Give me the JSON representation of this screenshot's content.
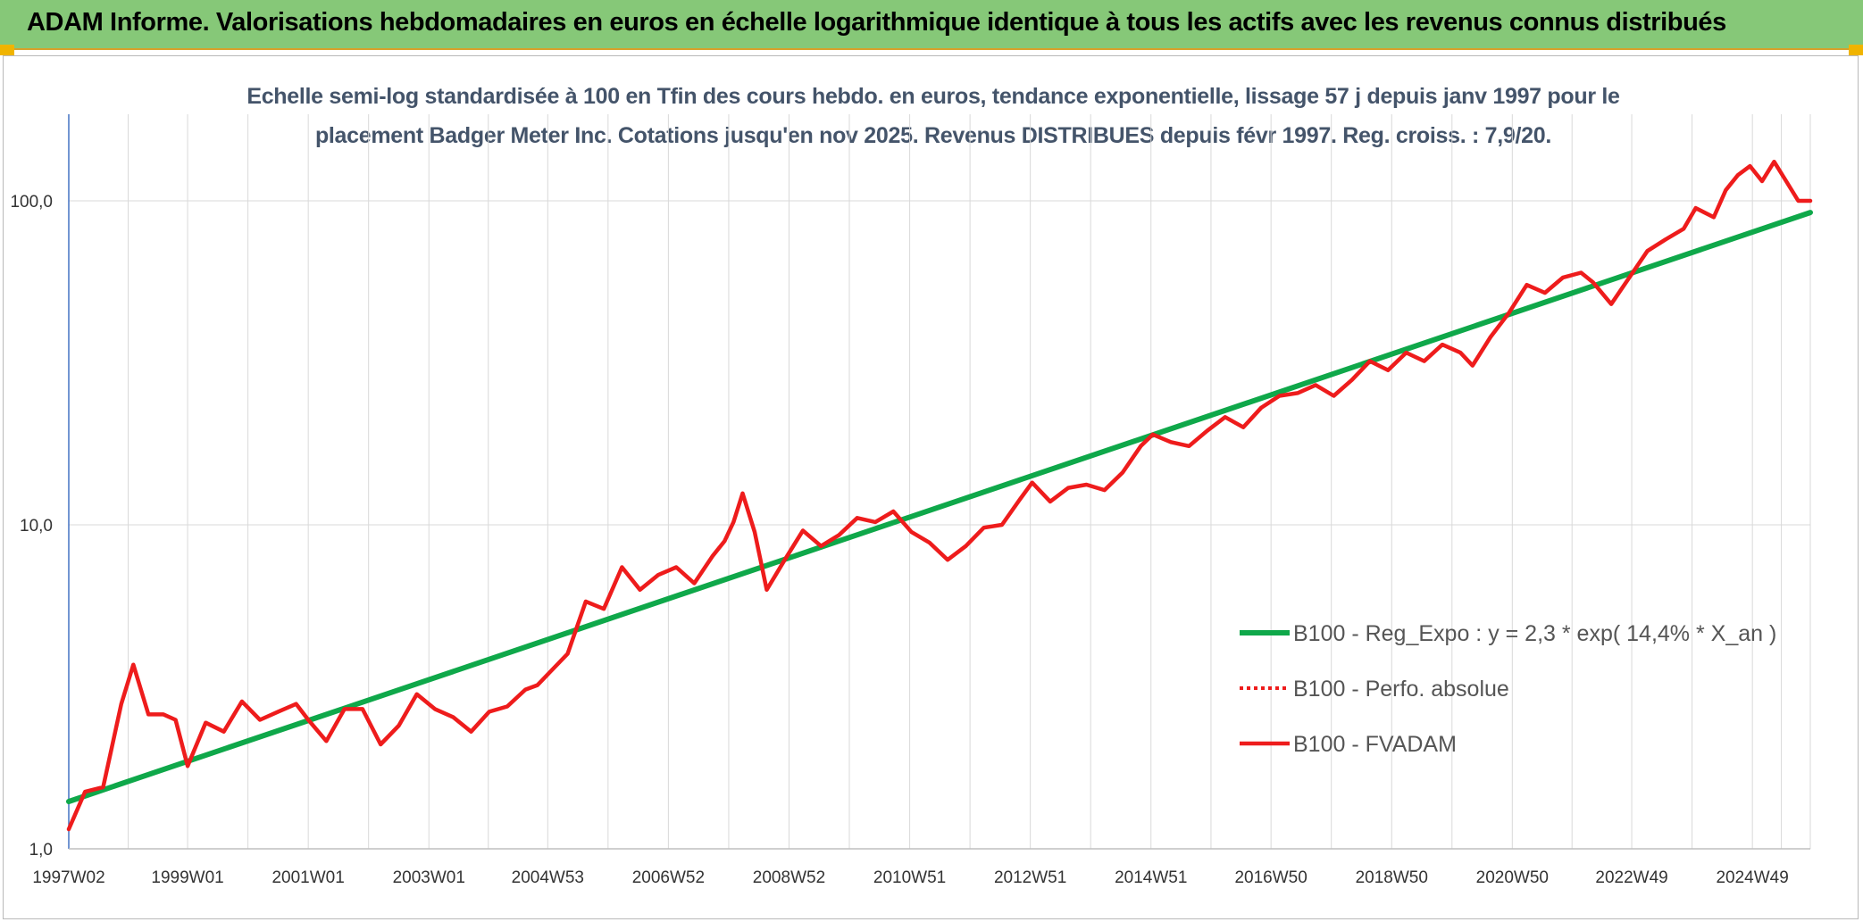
{
  "header": {
    "title": "ADAM Informe. Valorisations hebdomadaires en euros en échelle logarithmique identique à tous les actifs avec les revenus connus distribués"
  },
  "colors": {
    "header_bg": "#86c878",
    "trend": "#0fa84a",
    "fvadam": "#ee1c1c",
    "grid": "#d9d9d9"
  },
  "chart_data": {
    "type": "line",
    "title": "Echelle semi-log standardisée à 100 en Tfin des cours hebdo. en euros, tendance exponentielle, lissage 57 j depuis janv 1997 pour le placement Badger Meter Inc. Cotations jusqu'en nov 2025. Revenus DISTRIBUES depuis févr 1997. Reg. croiss. : 7,9/20.",
    "title_lines": [
      "Echelle semi-log standardisée à 100 en Tfin des cours hebdo. en euros, tendance exponentielle, lissage 57 j depuis janv 1997 pour le",
      "placement Badger Meter Inc. Cotations jusqu'en nov 2025. Revenus DISTRIBUES depuis févr 1997. Reg. croiss. : 7,9/20."
    ],
    "y_scale": "log",
    "ylim": [
      1,
      185
    ],
    "y_ticks": [
      1,
      10,
      100
    ],
    "y_tick_labels": [
      "1,0",
      "10,0",
      "100,0"
    ],
    "x_range": [
      1997.03,
      2025.9
    ],
    "x_ticks": [
      1997.03,
      1999.0,
      2001.0,
      2003.0,
      2004.97,
      2006.97,
      2008.97,
      2010.97,
      2012.97,
      2014.97,
      2016.96,
      2018.96,
      2020.96,
      2022.94,
      2024.94
    ],
    "x_tick_labels": [
      "1997W02",
      "1999W01",
      "2001W01",
      "2003W01",
      "2004W53",
      "2006W52",
      "2008W52",
      "2010W51",
      "2012W51",
      "2014W51",
      "2016W50",
      "2018W50",
      "2020W50",
      "2022W49",
      "2024W49"
    ],
    "grid": true,
    "legend_position": "right",
    "legend": [
      "B100 - Reg_Expo : y = 2,3 * exp( 14,4% *  X_an )",
      "B100 - Perfo. absolue",
      "B100 - FVADAM"
    ],
    "series": [
      {
        "name": "B100 - Reg_Expo : y = 2,3 * exp( 14,4% *  X_an )",
        "style": "solid-green",
        "x": [
          1997.03,
          2025.9
        ],
        "values": [
          1.4,
          92
        ]
      },
      {
        "name": "B100 - FVADAM",
        "style": "solid-red",
        "x": [
          1997.03,
          1997.3,
          1997.6,
          1997.9,
          1998.1,
          1998.35,
          1998.6,
          1998.8,
          1999.0,
          1999.3,
          1999.6,
          1999.9,
          2000.2,
          2000.5,
          2000.8,
          2001.0,
          2001.3,
          2001.6,
          2001.9,
          2002.2,
          2002.5,
          2002.8,
          2003.1,
          2003.4,
          2003.7,
          2004.0,
          2004.3,
          2004.6,
          2004.8,
          2005.0,
          2005.3,
          2005.6,
          2005.9,
          2006.2,
          2006.5,
          2006.8,
          2007.1,
          2007.4,
          2007.7,
          2007.9,
          2008.05,
          2008.2,
          2008.4,
          2008.6,
          2008.9,
          2009.2,
          2009.5,
          2009.8,
          2010.1,
          2010.4,
          2010.7,
          2011.0,
          2011.3,
          2011.6,
          2011.9,
          2012.2,
          2012.5,
          2012.8,
          2013.0,
          2013.3,
          2013.6,
          2013.9,
          2014.2,
          2014.5,
          2014.8,
          2015.0,
          2015.3,
          2015.6,
          2015.9,
          2016.2,
          2016.5,
          2016.8,
          2017.1,
          2017.4,
          2017.7,
          2018.0,
          2018.3,
          2018.6,
          2018.9,
          2019.2,
          2019.5,
          2019.8,
          2020.1,
          2020.3,
          2020.6,
          2020.9,
          2021.2,
          2021.5,
          2021.8,
          2022.1,
          2022.3,
          2022.6,
          2022.9,
          2023.2,
          2023.5,
          2023.8,
          2024.0,
          2024.3,
          2024.5,
          2024.7,
          2024.9,
          2025.1,
          2025.3,
          2025.5,
          2025.7,
          2025.9
        ],
        "values": [
          1.15,
          1.5,
          1.55,
          2.8,
          3.7,
          2.6,
          2.6,
          2.5,
          1.8,
          2.45,
          2.3,
          2.85,
          2.5,
          2.65,
          2.8,
          2.5,
          2.15,
          2.7,
          2.7,
          2.1,
          2.4,
          3.0,
          2.7,
          2.55,
          2.3,
          2.65,
          2.75,
          3.1,
          3.2,
          3.5,
          4.0,
          5.8,
          5.5,
          7.4,
          6.3,
          7.0,
          7.4,
          6.6,
          8.0,
          8.9,
          10.2,
          12.5,
          9.5,
          6.3,
          7.8,
          9.6,
          8.6,
          9.3,
          10.5,
          10.2,
          11.0,
          9.5,
          8.8,
          7.8,
          8.6,
          9.8,
          10.0,
          12.0,
          13.5,
          11.8,
          13.0,
          13.3,
          12.8,
          14.5,
          17.5,
          19.0,
          18.0,
          17.5,
          19.5,
          21.5,
          20.0,
          23.0,
          25.0,
          25.5,
          27.0,
          25.0,
          28.0,
          32.0,
          30.0,
          34.0,
          32.0,
          36.0,
          34.0,
          31.0,
          38.0,
          45.0,
          55.0,
          52.0,
          58.0,
          60.0,
          56.0,
          48.0,
          58.0,
          70.0,
          76.0,
          82.0,
          95.0,
          89.0,
          108.0,
          120.0,
          128.0,
          115.0,
          132.0,
          115.0,
          100.0,
          100.0
        ]
      }
    ]
  }
}
